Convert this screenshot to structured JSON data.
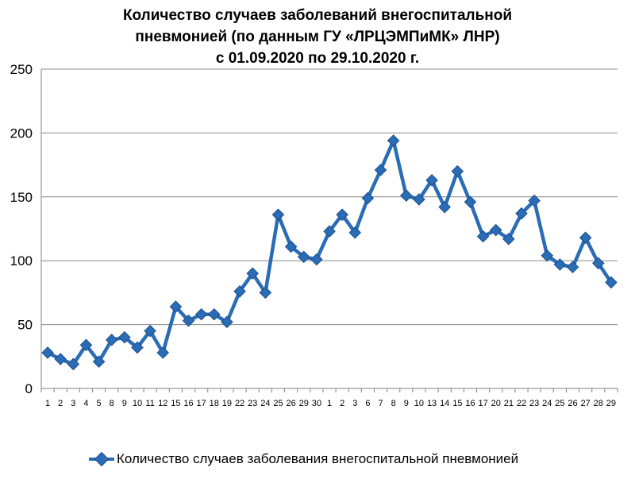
{
  "chart_data": {
    "type": "line",
    "title_lines": [
      "Количество случаев заболеваний внегоспитальной",
      "пневмонией (по данным ГУ «ЛРЦЭМПиМК» ЛНР)",
      "с 01.09.2020 по 29.10.2020 г."
    ],
    "categories": [
      "1",
      "2",
      "3",
      "4",
      "5",
      "8",
      "9",
      "10",
      "11",
      "12",
      "15",
      "16",
      "17",
      "18",
      "19",
      "22",
      "23",
      "24",
      "25",
      "26",
      "29",
      "30",
      "1",
      "2",
      "3",
      "6",
      "7",
      "8",
      "9",
      "10",
      "13",
      "14",
      "15",
      "16",
      "17",
      "20",
      "21",
      "22",
      "23",
      "24",
      "25",
      "26",
      "27",
      "28",
      "29"
    ],
    "series": [
      {
        "name": "Количество случаев заболевания внегоспитальной пневмонией",
        "color": "#2a6cb5",
        "values": [
          28,
          23,
          19,
          34,
          21,
          38,
          40,
          32,
          45,
          28,
          64,
          53,
          58,
          58,
          52,
          76,
          90,
          75,
          136,
          111,
          103,
          101,
          123,
          136,
          122,
          149,
          171,
          194,
          151,
          148,
          163,
          142,
          170,
          146,
          119,
          124,
          117,
          137,
          147,
          104,
          97,
          95,
          118,
          98,
          83
        ]
      }
    ],
    "ylim": [
      0,
      250
    ],
    "yticks": [
      0,
      50,
      100,
      150,
      200,
      250
    ],
    "grid": true,
    "legend_position": "bottom"
  }
}
